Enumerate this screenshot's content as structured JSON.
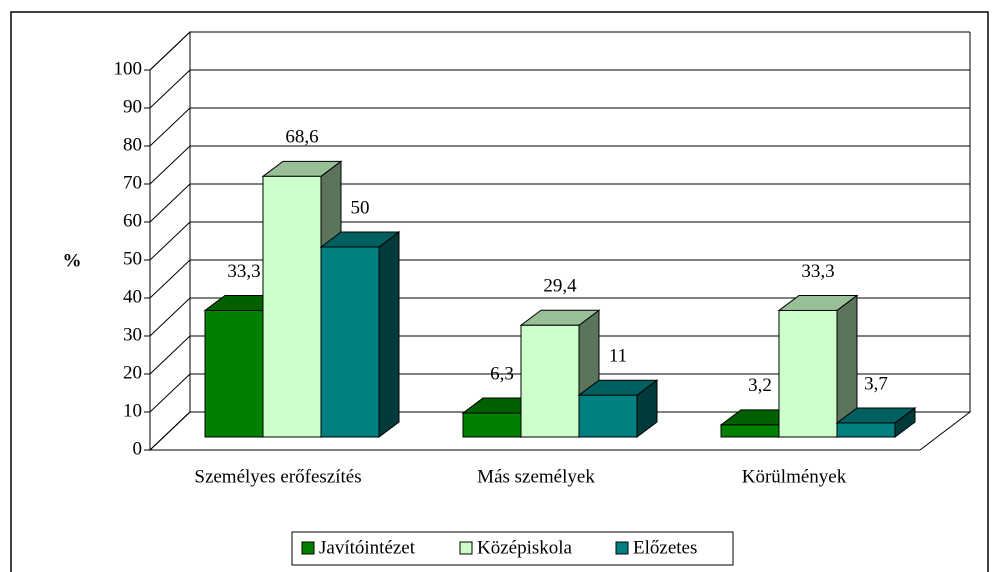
{
  "chart_data": {
    "type": "bar3d",
    "ylabel": "%",
    "categories": [
      "Személyes erőfeszítés",
      "Más személyek",
      "Körülmények"
    ],
    "series": [
      {
        "name": "Javítóintézet",
        "color": "#008000",
        "values": [
          33.3,
          6.3,
          3.2
        ],
        "value_labels": [
          "33,3",
          "6,3",
          "3,2"
        ]
      },
      {
        "name": "Középiskola",
        "color": "#ccffcc",
        "values": [
          68.6,
          29.4,
          33.3
        ],
        "value_labels": [
          "68,6",
          "29,4",
          "33,3"
        ]
      },
      {
        "name": "Előzetes",
        "color": "#008080",
        "values": [
          50,
          11,
          3.7
        ],
        "value_labels": [
          "50",
          "11",
          "3,7"
        ]
      }
    ],
    "ylim": [
      0,
      100
    ],
    "yticks": [
      0,
      10,
      20,
      30,
      40,
      50,
      60,
      70,
      80,
      90,
      100
    ],
    "grid": true
  }
}
